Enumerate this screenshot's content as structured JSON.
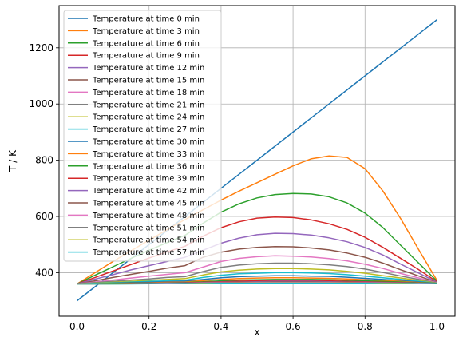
{
  "chart_data": {
    "type": "line",
    "title": "",
    "xlabel": "x",
    "ylabel": "T / K",
    "xlim": [
      -0.05,
      1.05
    ],
    "ylim": [
      245,
      1350
    ],
    "xticks": [
      0.0,
      0.2,
      0.4,
      0.6,
      0.8,
      1.0
    ],
    "xtick_labels": [
      "0.0",
      "0.2",
      "0.4",
      "0.6",
      "0.8",
      "1.0"
    ],
    "yticks": [
      400,
      600,
      800,
      1000,
      1200
    ],
    "ytick_labels": [
      "400",
      "600",
      "800",
      "1000",
      "1200"
    ],
    "grid": true,
    "legend_position": "upper-left",
    "x": [
      0,
      0.05,
      0.1,
      0.15,
      0.2,
      0.25,
      0.3,
      0.35,
      0.4,
      0.45,
      0.5,
      0.55,
      0.6,
      0.65,
      0.7,
      0.75,
      0.8,
      0.85,
      0.9,
      0.95,
      1.0
    ],
    "series": [
      {
        "name": "Temperature at time 0 min",
        "color": "#1f77b4",
        "values": [
          300,
          350,
          400,
          450,
          500,
          550,
          600,
          650,
          700,
          750,
          800,
          850,
          900,
          950,
          1000,
          1050,
          1100,
          1150,
          1200,
          1250,
          1300
        ]
      },
      {
        "name": "Temperature at time 3 min",
        "color": "#ff7f0e",
        "values": [
          360,
          400,
          440,
          478,
          516,
          553,
          589,
          624,
          658,
          690,
          720,
          750,
          780,
          805,
          815,
          810,
          770,
          690,
          590,
          480,
          372
        ]
      },
      {
        "name": "Temperature at time 6 min",
        "color": "#2ca02c",
        "values": [
          360,
          391,
          421,
          451,
          480,
          507,
          533,
          576,
          615,
          645,
          666,
          678,
          682,
          680,
          670,
          648,
          612,
          560,
          496,
          433,
          370
        ]
      },
      {
        "name": "Temperature at time 9 min",
        "color": "#d62728",
        "values": [
          360,
          383,
          406,
          429,
          452,
          474,
          494,
          530,
          560,
          581,
          594,
          598,
          596,
          588,
          574,
          554,
          526,
          490,
          450,
          410,
          368
        ]
      },
      {
        "name": "Temperature at time 12 min",
        "color": "#9467bd",
        "values": [
          360,
          377,
          393,
          410,
          425,
          440,
          455,
          480,
          505,
          523,
          535,
          540,
          539,
          534,
          524,
          510,
          490,
          463,
          430,
          398,
          366
        ]
      },
      {
        "name": "Temperature at time 15 min",
        "color": "#8c564b",
        "values": [
          360,
          371,
          383,
          394,
          405,
          416,
          425,
          455,
          473,
          484,
          490,
          493,
          492,
          488,
          481,
          470,
          455,
          434,
          410,
          388,
          365
        ]
      },
      {
        "name": "Temperature at time 18 min",
        "color": "#e377c2",
        "values": [
          360,
          367,
          374,
          381,
          388,
          394,
          400,
          420,
          440,
          451,
          457,
          460,
          459,
          456,
          450,
          442,
          430,
          415,
          397,
          381,
          364
        ]
      },
      {
        "name": "Temperature at time 21 min",
        "color": "#7f7f7f",
        "values": [
          360,
          365,
          369,
          374,
          378,
          383,
          386,
          404,
          419,
          427,
          432,
          434,
          434,
          432,
          428,
          422,
          413,
          401,
          388,
          376,
          363
        ]
      },
      {
        "name": "Temperature at time 24 min",
        "color": "#bcbd22",
        "values": [
          360,
          363,
          366,
          369,
          373,
          376,
          379,
          392,
          403,
          409,
          413,
          415,
          415,
          413,
          410,
          405,
          398,
          389,
          381,
          372,
          363
        ]
      },
      {
        "name": "Temperature at time 27 min",
        "color": "#17becf",
        "values": [
          360,
          362,
          364,
          367,
          369,
          371,
          373,
          383,
          391,
          396,
          398,
          400,
          400,
          399,
          397,
          393,
          388,
          382,
          376,
          369,
          362
        ]
      },
      {
        "name": "Temperature at time 30 min",
        "color": "#1f77b4",
        "values": [
          360,
          361,
          363,
          365,
          366,
          368,
          370,
          376,
          382,
          386,
          388,
          389,
          389,
          388,
          387,
          384,
          380,
          376,
          372,
          367,
          362
        ]
      },
      {
        "name": "Temperature at time 33 min",
        "color": "#ff7f0e",
        "values": [
          360,
          361,
          362,
          363,
          364,
          366,
          367,
          372,
          376,
          379,
          381,
          382,
          382,
          381,
          380,
          378,
          375,
          372,
          369,
          365,
          362
        ]
      },
      {
        "name": "Temperature at time 36 min",
        "color": "#2ca02c",
        "values": [
          360,
          361,
          362,
          363,
          363,
          364,
          365,
          368,
          371,
          374,
          375,
          376,
          376,
          376,
          375,
          373,
          371,
          369,
          367,
          364,
          362
        ]
      },
      {
        "name": "Temperature at time 39 min",
        "color": "#d62728",
        "values": [
          360,
          360,
          361,
          362,
          363,
          363,
          364,
          366,
          368,
          370,
          371,
          372,
          372,
          371,
          371,
          369,
          368,
          366,
          365,
          363,
          361
        ]
      },
      {
        "name": "Temperature at time 42 min",
        "color": "#9467bd",
        "values": [
          360,
          360,
          361,
          361,
          362,
          363,
          363,
          365,
          366,
          367,
          368,
          369,
          369,
          369,
          368,
          367,
          366,
          365,
          364,
          362,
          361
        ]
      },
      {
        "name": "Temperature at time 45 min",
        "color": "#8c564b",
        "values": [
          360,
          360,
          361,
          361,
          362,
          362,
          362,
          364,
          365,
          366,
          366,
          367,
          367,
          367,
          366,
          366,
          365,
          364,
          363,
          362,
          361
        ]
      },
      {
        "name": "Temperature at time 48 min",
        "color": "#e377c2",
        "values": [
          360,
          360,
          361,
          361,
          361,
          362,
          362,
          363,
          364,
          364,
          365,
          365,
          365,
          365,
          365,
          364,
          364,
          363,
          362,
          362,
          361
        ]
      },
      {
        "name": "Temperature at time 51 min",
        "color": "#7f7f7f",
        "values": [
          360,
          360,
          360,
          361,
          361,
          361,
          362,
          362,
          363,
          363,
          364,
          364,
          364,
          364,
          364,
          363,
          363,
          362,
          362,
          361,
          361
        ]
      },
      {
        "name": "Temperature at time 54 min",
        "color": "#bcbd22",
        "values": [
          360,
          360,
          360,
          361,
          361,
          361,
          361,
          362,
          362,
          363,
          363,
          363,
          363,
          363,
          363,
          363,
          362,
          362,
          362,
          361,
          361
        ]
      },
      {
        "name": "Temperature at time 57 min",
        "color": "#17becf",
        "values": [
          360,
          360,
          360,
          360,
          361,
          361,
          361,
          361,
          362,
          362,
          362,
          362,
          362,
          362,
          362,
          362,
          362,
          361,
          361,
          361,
          361
        ]
      }
    ]
  }
}
